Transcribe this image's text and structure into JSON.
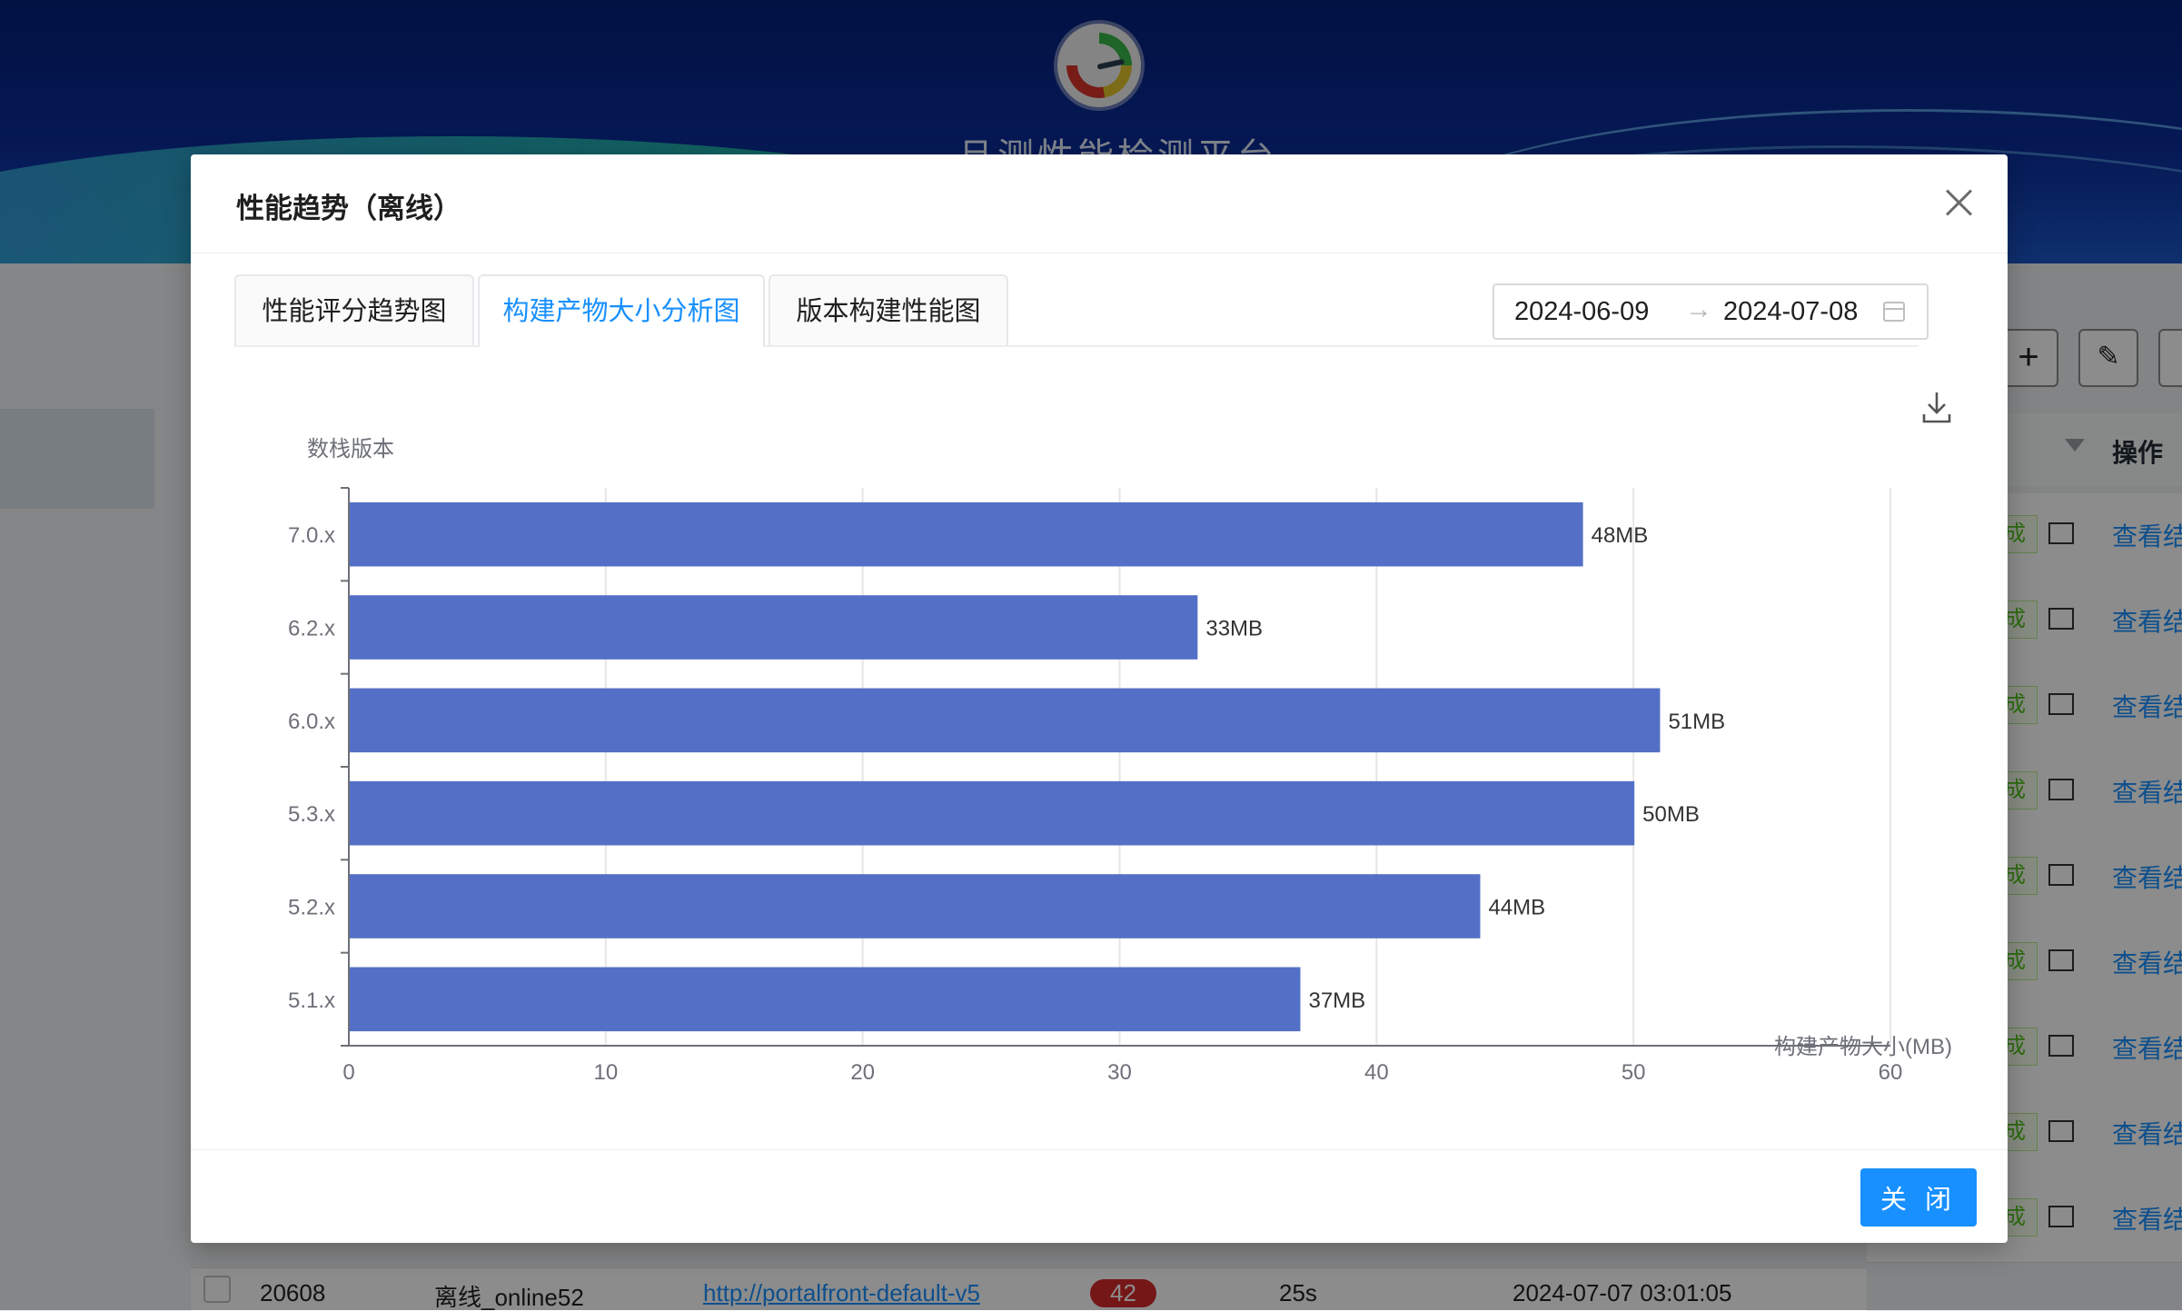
{
  "background": {
    "platform_title": "旦测性能检测平台",
    "column_header_action": "操作",
    "row_tag": "成",
    "row_link": "查看结",
    "bottom_row": {
      "id": "20608",
      "env": "离线_online52",
      "url": "http://portalfront-default-v5",
      "badge": "42",
      "duration": "25s",
      "time": "2024-07-07 03:01:05"
    }
  },
  "modal": {
    "title": "性能趋势（离线）",
    "tabs": [
      {
        "label": "性能评分趋势图",
        "active": false
      },
      {
        "label": "构建产物大小分析图",
        "active": true
      },
      {
        "label": "版本构建性能图",
        "active": false
      }
    ],
    "date_range": {
      "start": "2024-06-09",
      "separator": "→",
      "end": "2024-07-08"
    },
    "footer_close_label": "关 闭"
  },
  "chart_data": {
    "type": "bar",
    "orientation": "horizontal",
    "title": "",
    "ylabel": "数栈版本",
    "xlabel": "构建产物大小(MB)",
    "categories": [
      "7.0.x",
      "6.2.x",
      "6.0.x",
      "5.3.x",
      "5.2.x",
      "5.1.x"
    ],
    "values": [
      48,
      33,
      51,
      50,
      44,
      37
    ],
    "value_labels": [
      "48MB",
      "33MB",
      "51MB",
      "50MB",
      "44MB",
      "37MB"
    ],
    "xlim": [
      0,
      60
    ],
    "xticks": [
      "0",
      "10",
      "20",
      "30",
      "40",
      "50",
      "60"
    ],
    "grid": true,
    "bar_color": "#5470c6"
  }
}
